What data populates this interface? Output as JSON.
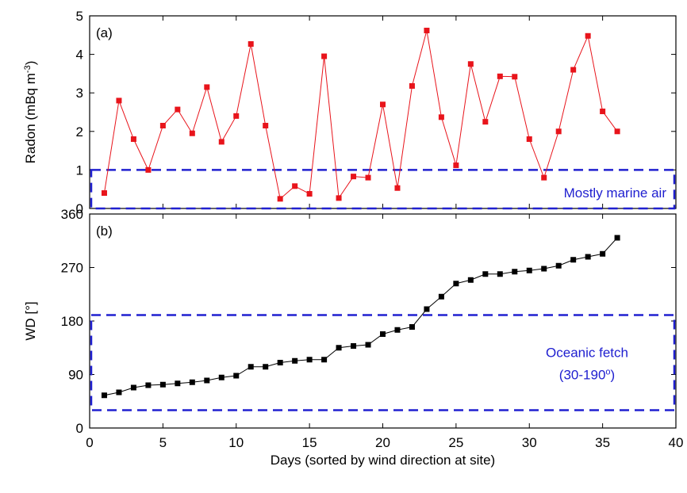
{
  "chart_data": [
    {
      "type": "line",
      "label": "(a)",
      "ylabel": [
        "Radon (mBq m",
        "-3",
        ")"
      ],
      "x": [
        1,
        2,
        3,
        4,
        5,
        6,
        7,
        8,
        9,
        10,
        11,
        12,
        13,
        14,
        15,
        16,
        17,
        18,
        19,
        20,
        21,
        22,
        23,
        24,
        25,
        26,
        27,
        28,
        29,
        30,
        31,
        32,
        33,
        34,
        35,
        36
      ],
      "series": [
        {
          "color": "#e8141b",
          "values": [
            0.4,
            2.8,
            1.8,
            1.0,
            2.15,
            2.57,
            1.95,
            3.15,
            1.73,
            2.4,
            4.27,
            2.15,
            0.25,
            0.58,
            0.38,
            3.95,
            0.27,
            0.83,
            0.8,
            2.7,
            0.53,
            3.18,
            4.62,
            2.37,
            1.12,
            3.75,
            2.25,
            3.43,
            3.42,
            1.8,
            0.8,
            2.0,
            3.6,
            4.48,
            2.52,
            2.0
          ]
        }
      ],
      "xlim": [
        0,
        40
      ],
      "xticks": [
        0,
        5,
        10,
        15,
        20,
        25,
        30,
        35,
        40
      ],
      "ylim": [
        0,
        5
      ],
      "yticks": [
        0,
        1,
        2,
        3,
        4,
        5
      ],
      "region": {
        "ylim": [
          0,
          1
        ],
        "color": "#2020d0",
        "text": [
          "Mostly marine air"
        ]
      }
    },
    {
      "type": "line",
      "label": "(b)",
      "ylabel": [
        "WD [°]"
      ],
      "xlabel": "Days (sorted by wind direction at site)",
      "x": [
        1,
        2,
        3,
        4,
        5,
        6,
        7,
        8,
        9,
        10,
        11,
        12,
        13,
        14,
        15,
        16,
        17,
        18,
        19,
        20,
        21,
        22,
        23,
        24,
        25,
        26,
        27,
        28,
        29,
        30,
        31,
        32,
        33,
        34,
        35,
        36
      ],
      "series": [
        {
          "color": "#000000",
          "values": [
            55,
            60,
            68,
            72,
            73,
            75,
            77,
            80,
            85,
            88,
            103,
            103,
            110,
            113,
            115,
            115,
            135,
            138,
            140,
            158,
            165,
            170,
            200,
            221,
            243,
            249,
            259,
            259,
            263,
            265,
            268,
            273,
            283,
            288,
            293,
            320
          ]
        }
      ],
      "xlim": [
        0,
        40
      ],
      "xticks": [
        0,
        5,
        10,
        15,
        20,
        25,
        30,
        35,
        40
      ],
      "ylim": [
        0,
        360
      ],
      "yticks": [
        0,
        90,
        180,
        270,
        360
      ],
      "region": {
        "ylim": [
          30,
          190
        ],
        "color": "#2020d0",
        "text": [
          "Oceanic fetch",
          [
            "(30-190",
            "o",
            ")"
          ]
        ]
      }
    }
  ]
}
